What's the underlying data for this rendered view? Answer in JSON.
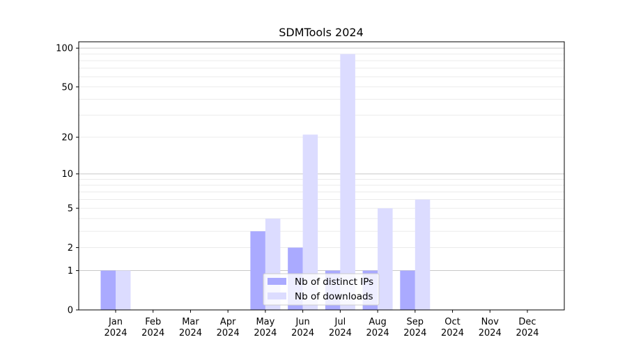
{
  "chart_data": {
    "type": "bar",
    "title": "SDMTools 2024",
    "xlabel": "",
    "ylabel": "",
    "yscale": "log(1+y)",
    "ylim": [
      0,
      112
    ],
    "y_ticks": [
      0,
      1,
      2,
      5,
      10,
      20,
      50,
      100
    ],
    "y_major_grid": [
      1,
      10,
      100
    ],
    "y_minor_grid": [
      2,
      3,
      4,
      5,
      6,
      7,
      8,
      9,
      20,
      30,
      40,
      50,
      60,
      70,
      80,
      90
    ],
    "grid": true,
    "legend_position": "bottom-center",
    "categories": [
      "Jan\n2024",
      "Feb\n2024",
      "Mar\n2024",
      "Apr\n2024",
      "May\n2024",
      "Jun\n2024",
      "Jul\n2024",
      "Aug\n2024",
      "Sep\n2024",
      "Oct\n2024",
      "Nov\n2024",
      "Dec\n2024"
    ],
    "category_labels": [
      {
        "month": "Jan",
        "year": "2024"
      },
      {
        "month": "Feb",
        "year": "2024"
      },
      {
        "month": "Mar",
        "year": "2024"
      },
      {
        "month": "Apr",
        "year": "2024"
      },
      {
        "month": "May",
        "year": "2024"
      },
      {
        "month": "Jun",
        "year": "2024"
      },
      {
        "month": "Jul",
        "year": "2024"
      },
      {
        "month": "Aug",
        "year": "2024"
      },
      {
        "month": "Sep",
        "year": "2024"
      },
      {
        "month": "Oct",
        "year": "2024"
      },
      {
        "month": "Nov",
        "year": "2024"
      },
      {
        "month": "Dec",
        "year": "2024"
      }
    ],
    "series": [
      {
        "name": "Nb of distinct IPs",
        "color": "#aaaaff",
        "values": [
          1,
          0,
          0,
          0,
          3,
          2,
          1,
          1,
          1,
          0,
          0,
          0
        ]
      },
      {
        "name": "Nb of downloads",
        "color": "#dcdcff",
        "values": [
          1,
          0,
          0,
          0,
          4,
          21,
          90,
          5,
          6,
          0,
          0,
          0
        ]
      }
    ]
  }
}
